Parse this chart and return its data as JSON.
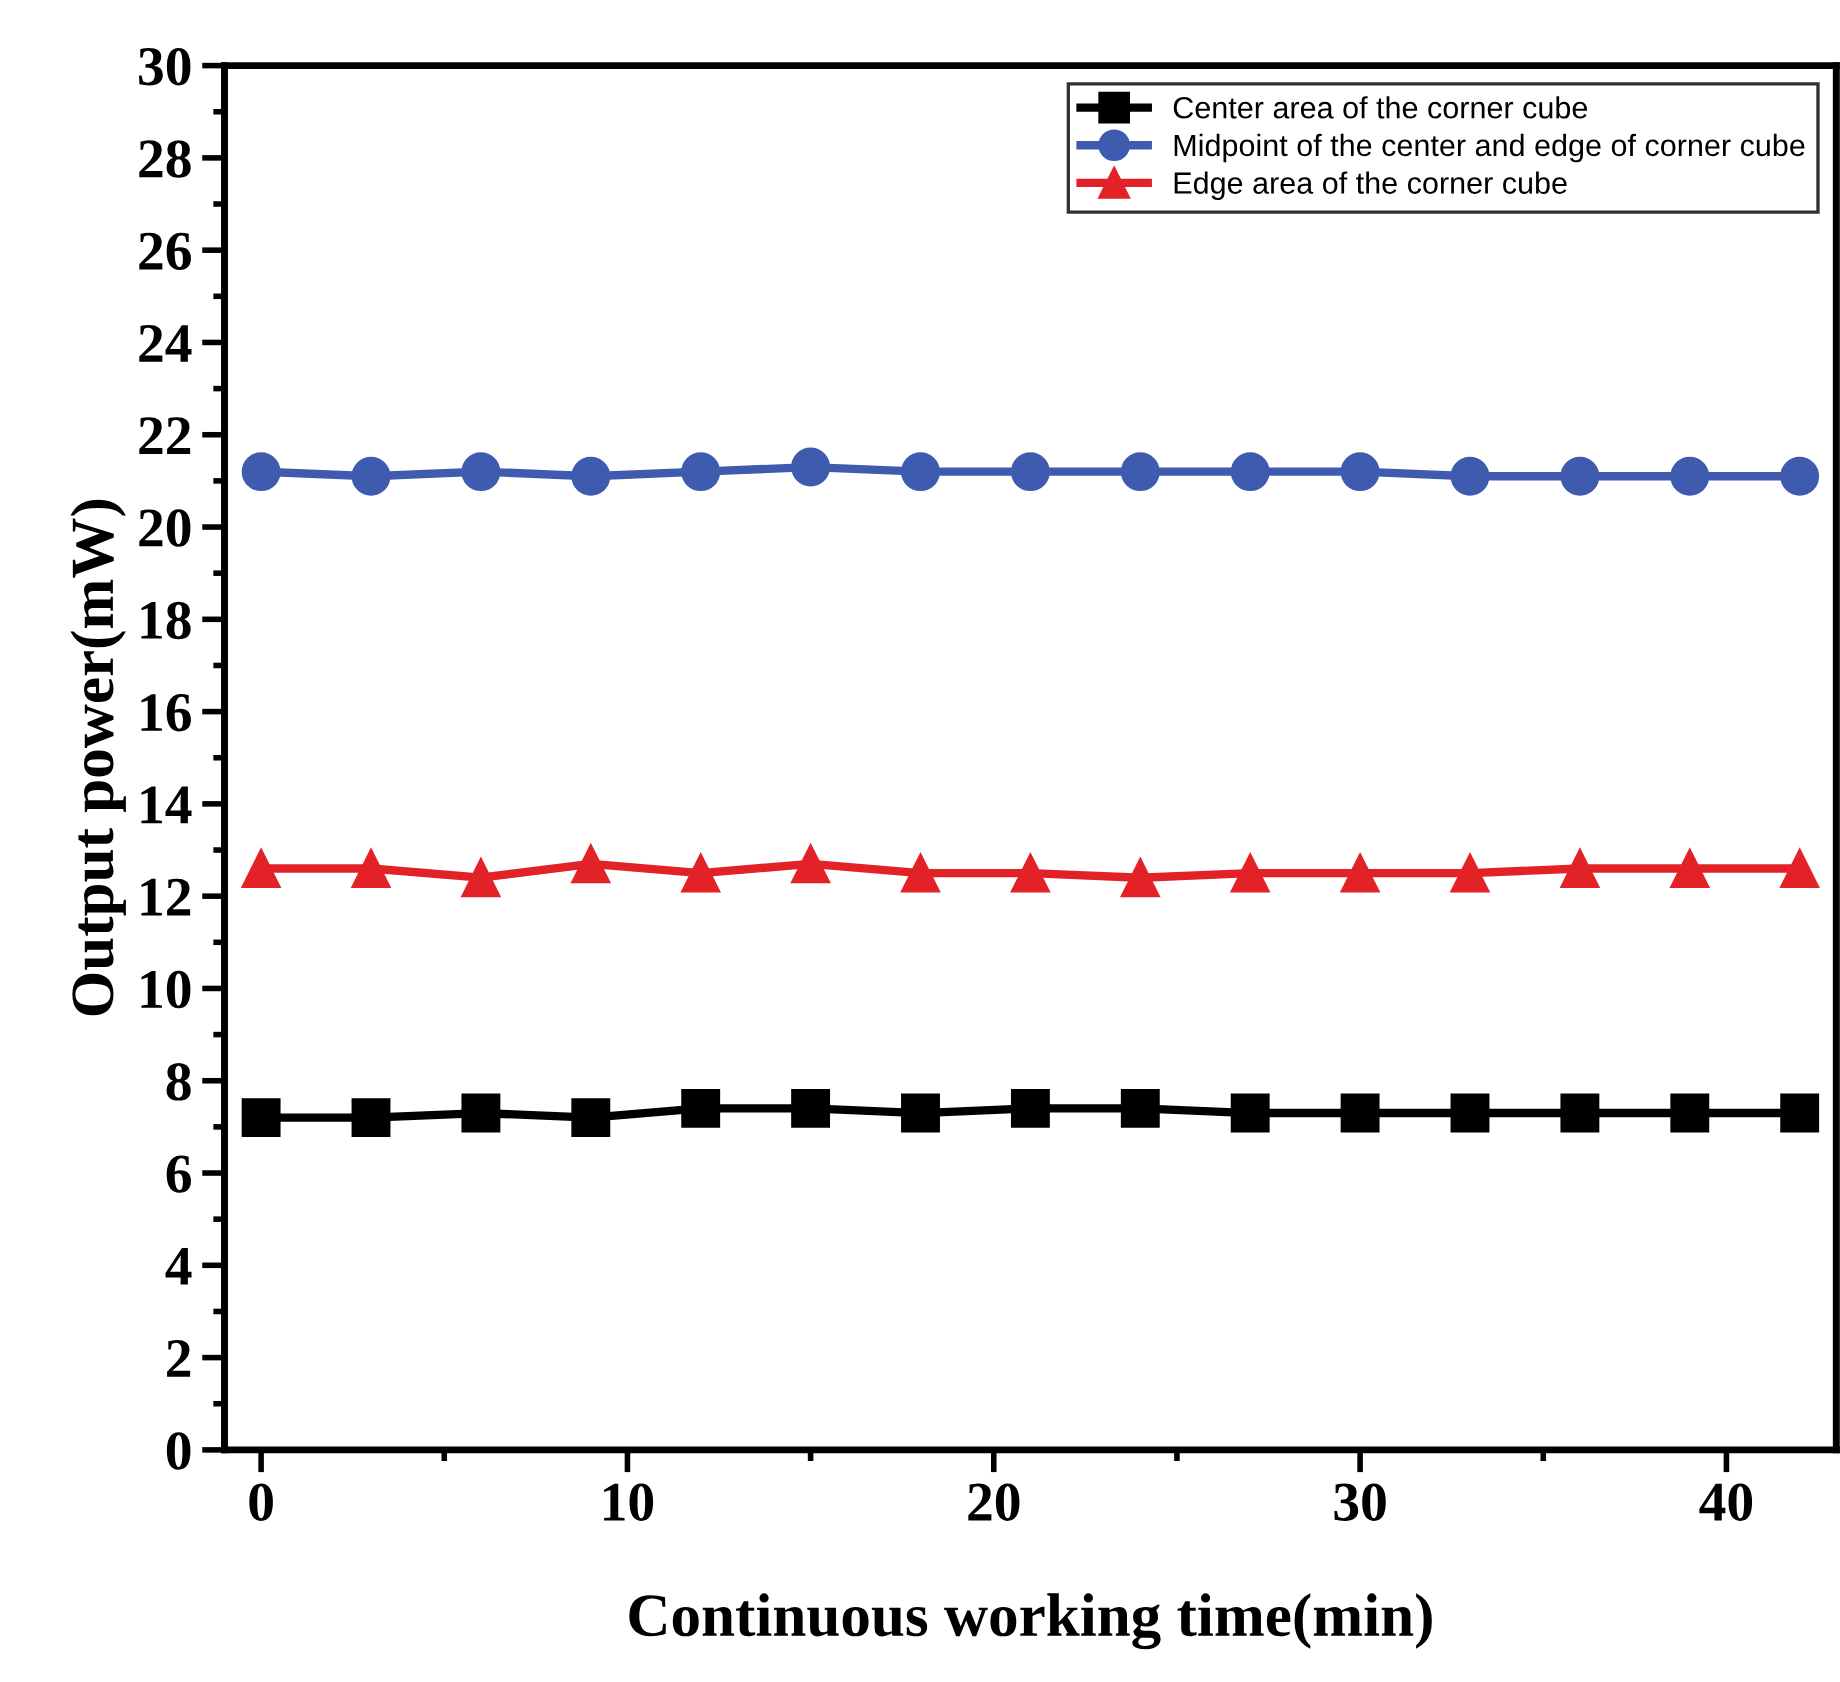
{
  "chart_data": {
    "type": "line",
    "xlabel": "Continuous working time(min)",
    "ylabel": "Output power(mW)",
    "x": [
      0,
      3,
      6,
      9,
      12,
      15,
      18,
      21,
      24,
      27,
      30,
      33,
      36,
      39,
      42
    ],
    "series": [
      {
        "name": "Center area of the corner cube",
        "color": "#000000",
        "marker": "square",
        "values": [
          7.2,
          7.2,
          7.3,
          7.2,
          7.4,
          7.4,
          7.3,
          7.4,
          7.4,
          7.3,
          7.3,
          7.3,
          7.3,
          7.3,
          7.3
        ]
      },
      {
        "name": "Midpoint of the center and edge of corner cube",
        "color": "#3f5bb0",
        "marker": "circle",
        "values": [
          21.2,
          21.1,
          21.2,
          21.1,
          21.2,
          21.3,
          21.2,
          21.2,
          21.2,
          21.2,
          21.2,
          21.1,
          21.1,
          21.1,
          21.1
        ]
      },
      {
        "name": "Edge area of the corner cube",
        "color": "#e32227",
        "marker": "triangle",
        "values": [
          12.6,
          12.6,
          12.4,
          12.7,
          12.5,
          12.7,
          12.5,
          12.5,
          12.4,
          12.5,
          12.5,
          12.5,
          12.6,
          12.6,
          12.6
        ]
      }
    ],
    "xlim": [
      -1,
      43
    ],
    "xticks": [
      0,
      10,
      20,
      30,
      40
    ],
    "ylim": [
      0,
      30
    ],
    "yticks": [
      0,
      2,
      4,
      6,
      8,
      10,
      12,
      14,
      16,
      18,
      20,
      22,
      24,
      26,
      28,
      30
    ],
    "grid": false,
    "legend": "top right",
    "line_style": "solid"
  }
}
